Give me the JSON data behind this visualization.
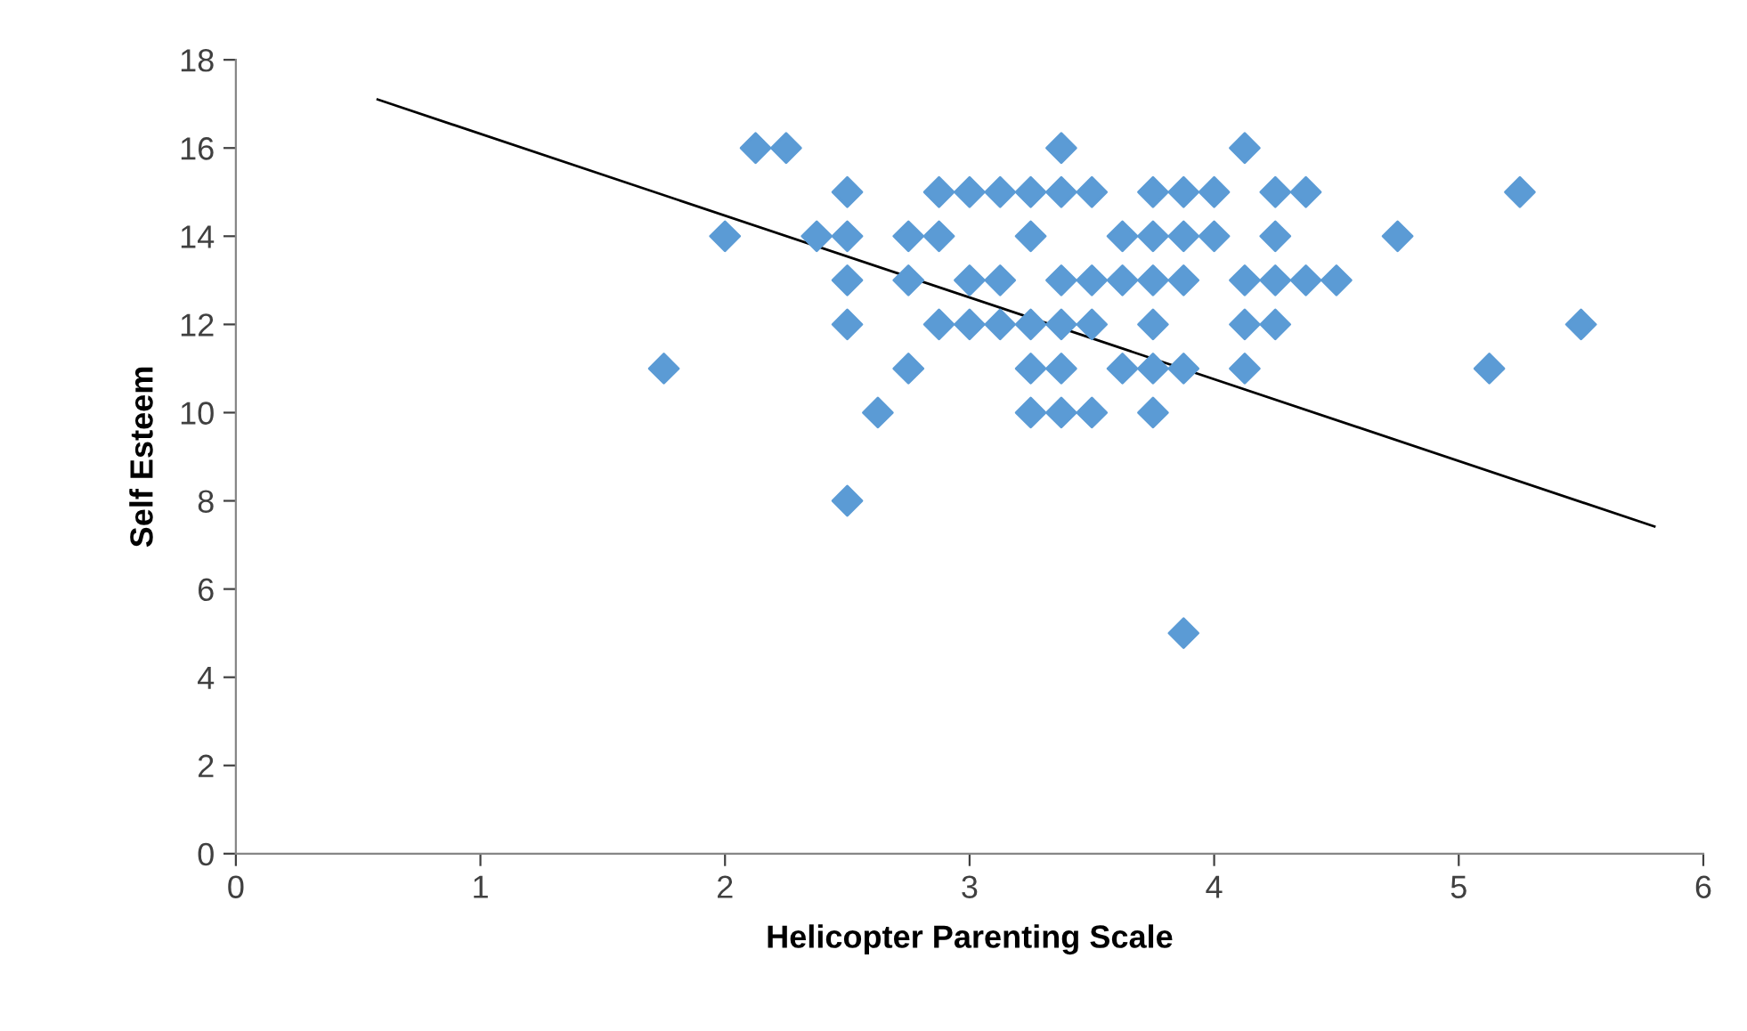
{
  "chart_data": {
    "type": "scatter",
    "xlabel": "Helicopter Parenting Scale",
    "ylabel": "Self Esteem",
    "xlim": [
      0,
      6
    ],
    "ylim": [
      0,
      18
    ],
    "xticks": [
      0,
      1,
      2,
      3,
      4,
      5,
      6
    ],
    "yticks": [
      0,
      2,
      4,
      6,
      8,
      10,
      12,
      14,
      16,
      18
    ],
    "grid": false,
    "legend": false,
    "series": [
      {
        "marker": "diamond",
        "color": "#5b9bd5",
        "x": [
          1.75,
          2.0,
          2.125,
          2.25,
          2.375,
          2.5,
          2.5,
          2.5,
          2.5,
          2.5,
          2.625,
          2.75,
          2.75,
          2.75,
          2.875,
          2.875,
          2.875,
          3.0,
          3.0,
          3.0,
          3.125,
          3.125,
          3.125,
          3.25,
          3.25,
          3.25,
          3.25,
          3.25,
          3.375,
          3.375,
          3.375,
          3.375,
          3.375,
          3.375,
          3.5,
          3.5,
          3.5,
          3.5,
          3.625,
          3.625,
          3.625,
          3.75,
          3.75,
          3.75,
          3.75,
          3.75,
          3.75,
          3.875,
          3.875,
          3.875,
          3.875,
          3.875,
          4.0,
          4.0,
          4.125,
          4.125,
          4.125,
          4.125,
          4.25,
          4.25,
          4.25,
          4.25,
          4.375,
          4.375,
          4.5,
          4.75,
          5.125,
          5.25,
          5.5
        ],
        "values": [
          11,
          14,
          16,
          16,
          14,
          15,
          14,
          13,
          12,
          8,
          10,
          13,
          14,
          11,
          15,
          14,
          12,
          15,
          13,
          12,
          15,
          13,
          12,
          15,
          14,
          12,
          11,
          10,
          16,
          15,
          13,
          12,
          11,
          10,
          15,
          13,
          12,
          10,
          14,
          13,
          11,
          15,
          14,
          13,
          12,
          11,
          10,
          15,
          14,
          13,
          11,
          5,
          15,
          14,
          16,
          13,
          12,
          11,
          15,
          14,
          13,
          12,
          15,
          13,
          13,
          14,
          11,
          15,
          12
        ]
      },
      {
        "type": "line",
        "marker": "none",
        "line_style": "solid",
        "color": "#000000",
        "x": [
          0.58,
          5.8
        ],
        "values": [
          17.1,
          7.42
        ]
      }
    ]
  }
}
